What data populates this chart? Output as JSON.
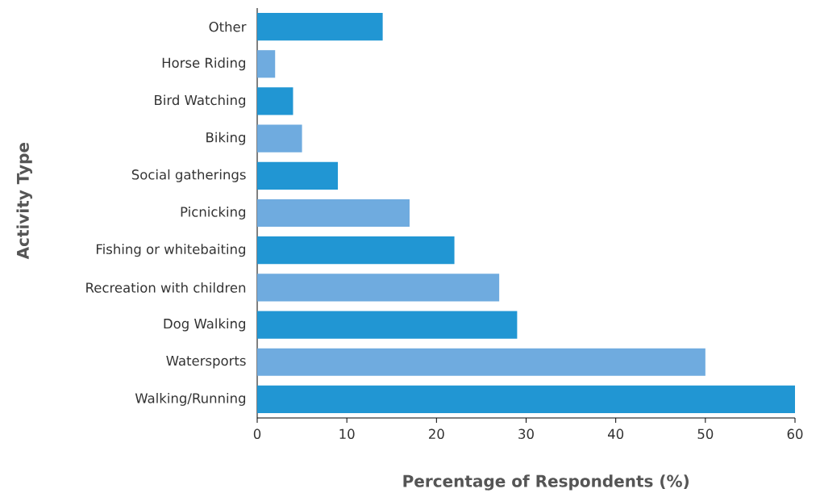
{
  "chart_data": {
    "type": "bar",
    "orientation": "horizontal",
    "xlabel": "Percentage of Respondents (%)",
    "ylabel": "Activity Type",
    "categories": [
      "Other",
      "Horse Riding",
      "Bird Watching",
      "Biking",
      "Social gatherings",
      "Picnicking",
      "Fishing or whitebaiting",
      "Recreation with children",
      "Dog Walking",
      "Watersports",
      "Walking/Running"
    ],
    "values": [
      14,
      2,
      4,
      5,
      9,
      17,
      22,
      27,
      29,
      50,
      60
    ],
    "colors": [
      "#2196d3",
      "#6fabdf",
      "#2196d3",
      "#6fabdf",
      "#2196d3",
      "#6fabdf",
      "#2196d3",
      "#6fabdf",
      "#2196d3",
      "#6fabdf",
      "#2196d3"
    ],
    "xlim": [
      0,
      60
    ],
    "xticks": [
      0,
      10,
      20,
      30,
      40,
      50,
      60
    ],
    "grid": false
  }
}
